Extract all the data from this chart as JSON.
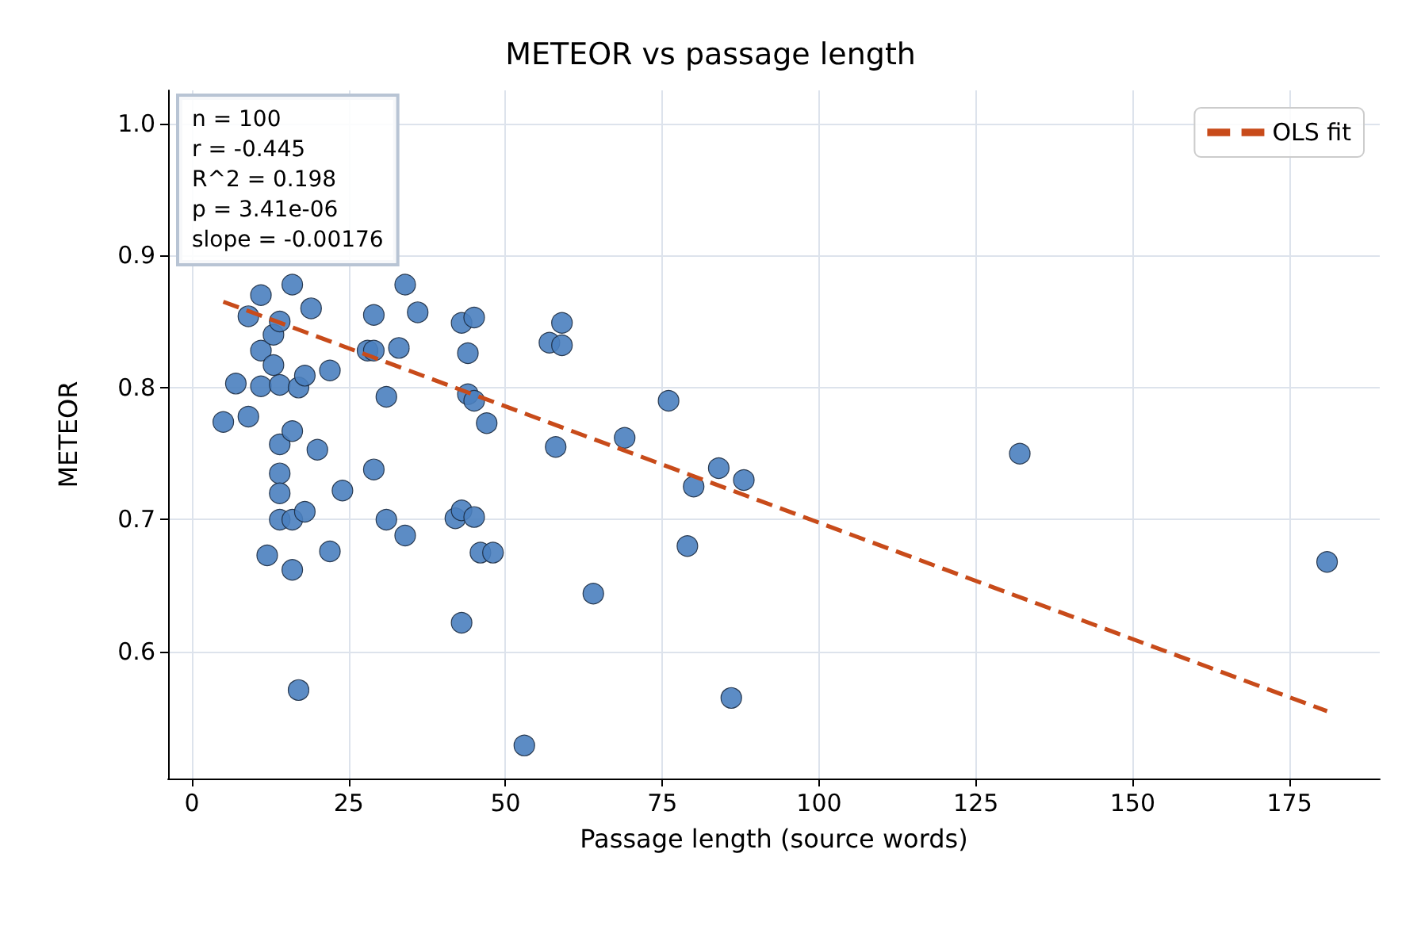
{
  "chart_data": {
    "type": "scatter",
    "title": "METEOR vs passage length",
    "xlabel": "Passage length (source words)",
    "ylabel": "METEOR",
    "xlim": [
      -3.8,
      189.4
    ],
    "ylim": [
      0.504,
      1.025
    ],
    "xticks": [
      0,
      25,
      50,
      75,
      100,
      125,
      150,
      175
    ],
    "yticks": [
      0.6,
      0.7,
      0.8,
      0.9,
      {
        "value": 1.0,
        "label": "1.0"
      }
    ],
    "grid": true,
    "legend": "top right",
    "annotations": [
      "n = 100",
      "r = -0.445",
      "R^2 = 0.198",
      "p = 3.41e-06",
      "slope = -0.00176"
    ],
    "series": [
      {
        "color": "#4a7fbf",
        "marker": "circle",
        "x": [
          5,
          7,
          9,
          9,
          11,
          11,
          11,
          12,
          13,
          13,
          14,
          14,
          14,
          14,
          14,
          14,
          16,
          16,
          16,
          16,
          17,
          17,
          18,
          18,
          19,
          20,
          22,
          22,
          24,
          28,
          29,
          29,
          29,
          31,
          31,
          33,
          34,
          34,
          36,
          42,
          43,
          43,
          43,
          44,
          44,
          45,
          45,
          45,
          46,
          47,
          48,
          53,
          57,
          58,
          59,
          59,
          64,
          69,
          76,
          79,
          80,
          84,
          86,
          88,
          132,
          181
        ],
        "values": [
          0.774,
          0.803,
          0.778,
          0.854,
          0.87,
          0.828,
          0.801,
          0.673,
          0.84,
          0.817,
          0.85,
          0.802,
          0.757,
          0.735,
          0.72,
          0.7,
          0.7,
          0.767,
          0.662,
          0.878,
          0.8,
          0.571,
          0.809,
          0.706,
          0.86,
          0.753,
          0.813,
          0.676,
          0.722,
          0.828,
          0.828,
          0.855,
          0.738,
          0.793,
          0.7,
          0.83,
          0.688,
          0.878,
          0.857,
          0.701,
          0.849,
          0.707,
          0.622,
          0.826,
          0.795,
          0.853,
          0.79,
          0.702,
          0.675,
          0.773,
          0.675,
          0.529,
          0.834,
          0.755,
          0.849,
          0.832,
          0.644,
          0.762,
          0.79,
          0.68,
          0.725,
          0.739,
          0.565,
          0.73,
          0.75,
          0.668
        ]
      },
      {
        "type": "line",
        "name": "OLS fit",
        "color": "#c84b1a",
        "line_style": "dashed",
        "marker": "none",
        "x": [
          5,
          181
        ],
        "values": [
          0.865,
          0.555
        ]
      }
    ]
  }
}
